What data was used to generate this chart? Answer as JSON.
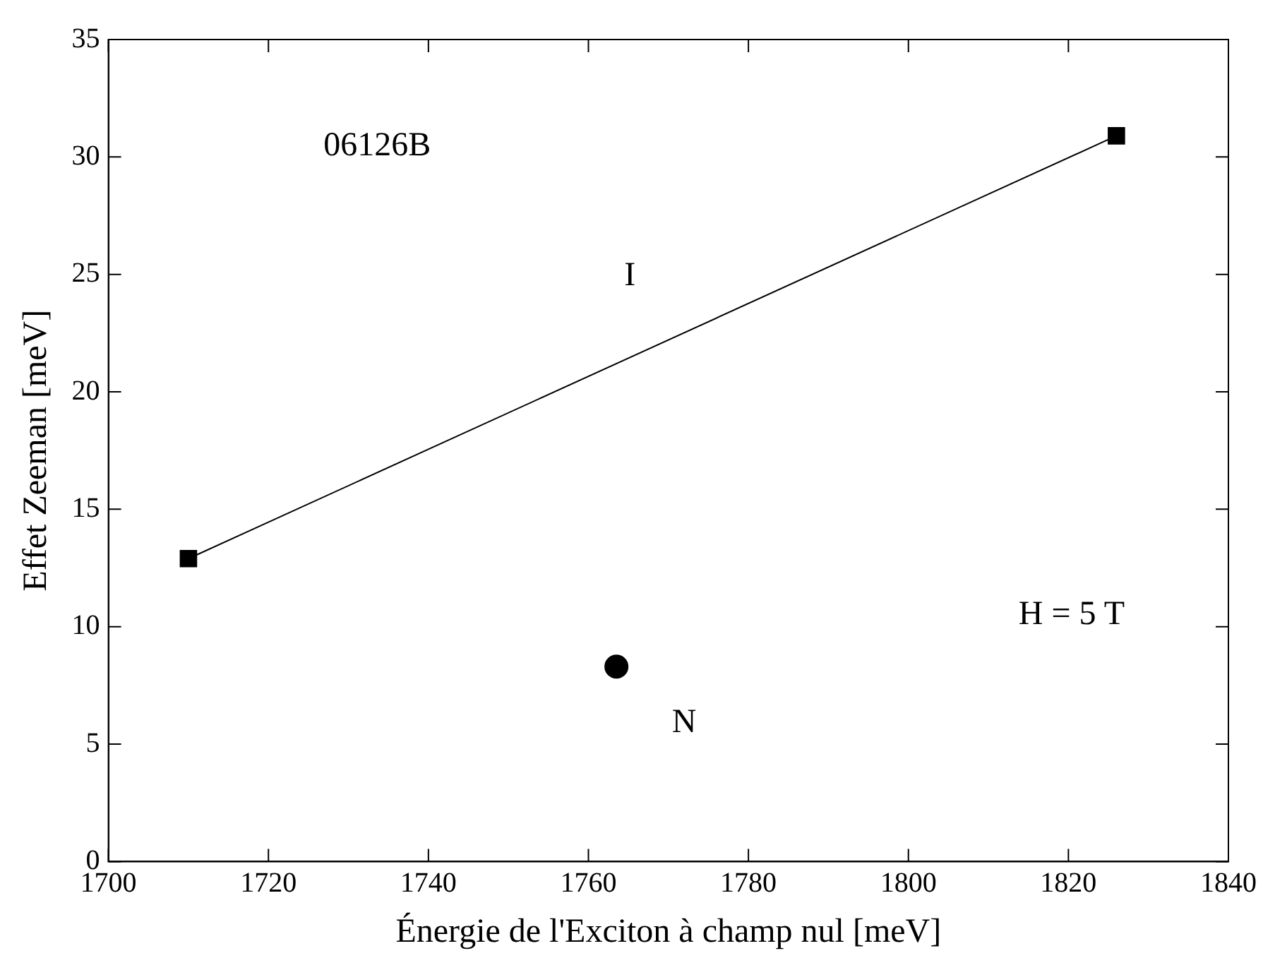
{
  "chart_data": {
    "type": "line",
    "xlabel": "Énergie de l'Exciton à champ nul [meV]",
    "ylabel": "Effet Zeeman [meV]",
    "xlim": [
      1700,
      1840
    ],
    "xticks": [
      1700,
      1720,
      1740,
      1760,
      1780,
      1800,
      1820,
      1840
    ],
    "ylim": [
      0,
      35
    ],
    "yticks": [
      0,
      5,
      10,
      15,
      20,
      25,
      30,
      35
    ],
    "series": [
      {
        "name": "I",
        "marker": "square",
        "color": "#000000",
        "x": [
          1710,
          1826
        ],
        "values": [
          12.9,
          30.9
        ]
      },
      {
        "name": "N",
        "type": "scatter",
        "marker": "circle",
        "color": "#000000",
        "x": [
          1763.5
        ],
        "values": [
          8.3
        ]
      }
    ],
    "annotations": [
      "06126B",
      "H = 5 T"
    ],
    "legend": false,
    "grid": false
  }
}
